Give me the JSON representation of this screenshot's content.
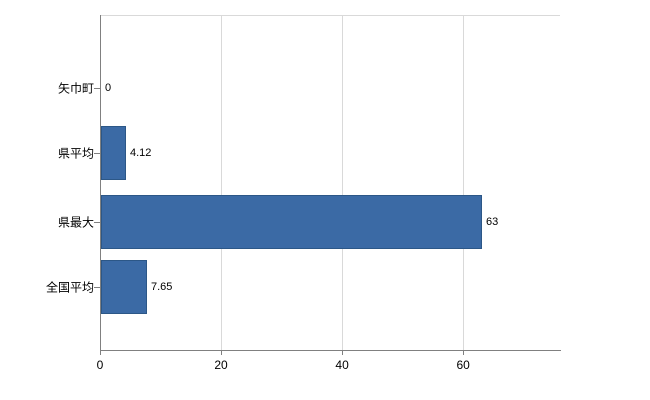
{
  "chart_data": {
    "type": "bar",
    "orientation": "horizontal",
    "title": "",
    "xlabel": "",
    "ylabel": "",
    "categories": [
      "矢巾町",
      "県平均",
      "県最大",
      "全国平均"
    ],
    "values": [
      0,
      4.12,
      63,
      7.65
    ],
    "value_labels": [
      "0",
      "4.12",
      "63",
      "7.65"
    ],
    "x_ticks": [
      0,
      20,
      40,
      60
    ],
    "x_tick_labels": [
      "0",
      "20",
      "40",
      "60"
    ],
    "xlim": [
      0,
      76
    ],
    "grid": true,
    "legend": "none",
    "bar_color": "#3b6aa5",
    "bar_border_color": "#2c5787",
    "grid_color": "#d9d9d9",
    "axis_color": "#808080",
    "text_color": "#000000",
    "background_color": "#ffffff"
  }
}
